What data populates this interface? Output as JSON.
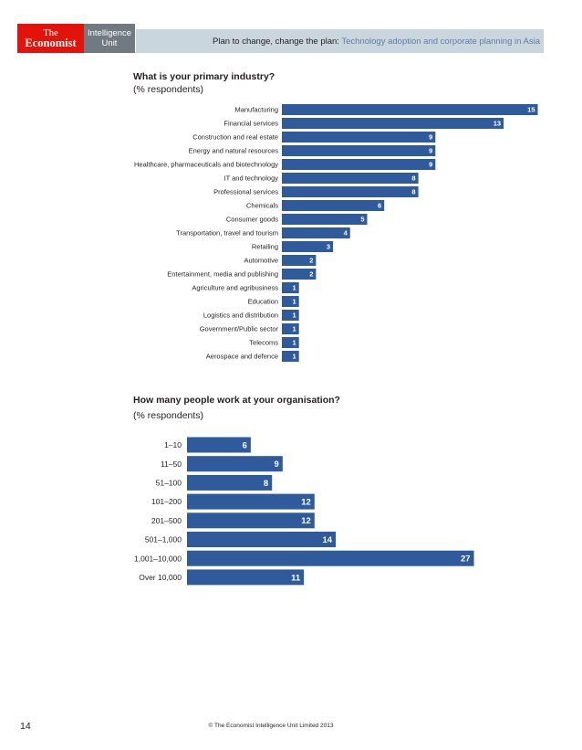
{
  "header": {
    "logo_line1": "The",
    "logo_line2": "Economist",
    "unit_line1": "Intelligence",
    "unit_line2": "Unit",
    "title_main": "Plan to change, change the plan: ",
    "title_highlight": "Technology adoption and corporate planning in Asia"
  },
  "colors": {
    "bar": "#2f5b9d",
    "header_band": "#c9d6de",
    "logo_red": "#e3120b",
    "logo_grey": "#707a80"
  },
  "chart_data": [
    {
      "type": "bar",
      "orientation": "horizontal",
      "title": "What is your primary industry?",
      "subtitle": "(% respondents)",
      "categories": [
        "Manufacturing",
        "Financial services",
        "Construction and real estate",
        "Energy and natural resources",
        "Healthcare, pharmaceuticals and biotechnology",
        "IT and technology",
        "Professional services",
        "Chemicals",
        "Consumer goods",
        "Transportation, travel and tourism",
        "Retailing",
        "Automotive",
        "Entertainment, media and publishing",
        "Agriculture and agribusiness",
        "Education",
        "Logistics and distribution",
        "Government/Public sector",
        "Telecoms",
        "Aerospace and defence"
      ],
      "values": [
        15,
        13,
        9,
        9,
        9,
        8,
        8,
        6,
        5,
        4,
        3,
        2,
        2,
        1,
        1,
        1,
        1,
        1,
        1
      ]
    },
    {
      "type": "bar",
      "orientation": "horizontal",
      "title": "How many people work at your organisation?",
      "subtitle": "(% respondents)",
      "categories": [
        "1–10",
        "11–50",
        "51–100",
        "101–200",
        "201–500",
        "501–1,000",
        "1,001–10,000",
        "Over 10,000"
      ],
      "values": [
        6,
        9,
        8,
        12,
        12,
        14,
        27,
        11
      ]
    }
  ],
  "footer": {
    "page_number": "14",
    "copyright": "© The Economist Intelligence Unit Limited 2013"
  }
}
